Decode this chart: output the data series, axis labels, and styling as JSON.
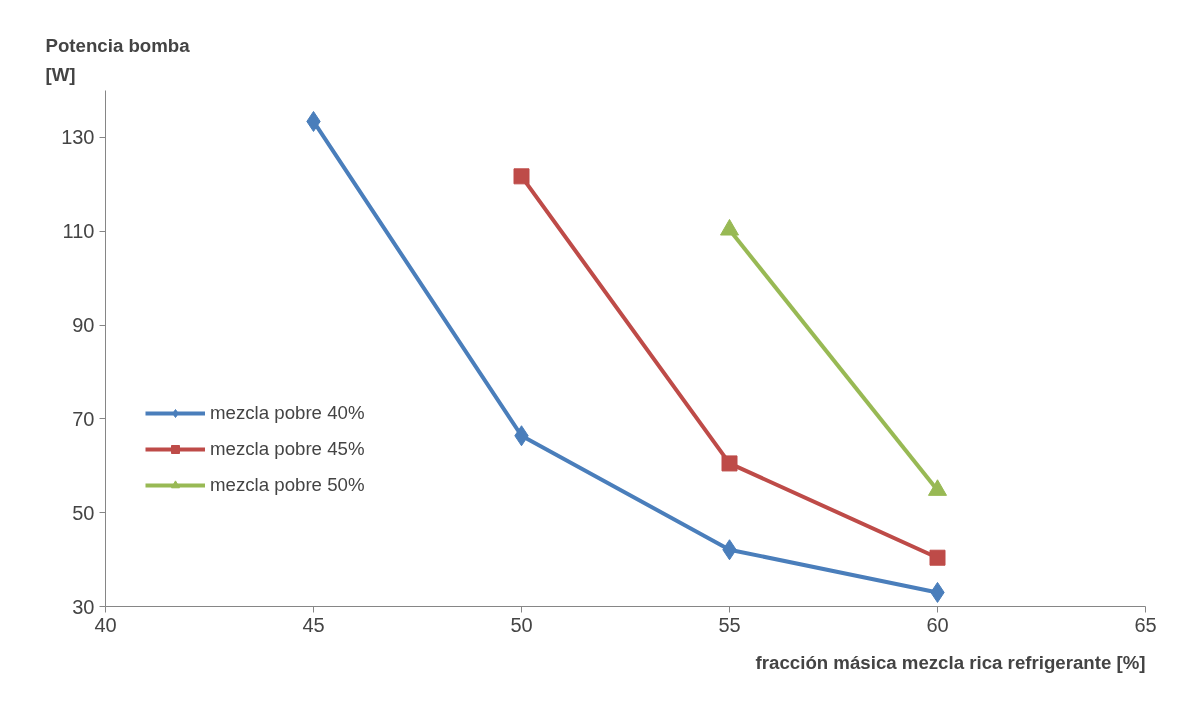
{
  "chart_data": {
    "type": "line",
    "ylabel": "Potencia bomba\n[W]",
    "xlabel": "fracción másica mezcla rica refrigerante [%]",
    "xlim": [
      40,
      65
    ],
    "xticks": [
      40,
      45,
      50,
      55,
      60,
      65
    ],
    "ylim": [
      30,
      140
    ],
    "yticks": [
      30,
      50,
      70,
      90,
      110,
      130
    ],
    "grid": false,
    "legend": "left",
    "line_style": "solid",
    "series": [
      {
        "name": "mezcla pobre 40%",
        "color": "#4a7ebb",
        "marker": "diamond",
        "x": [
          45,
          50,
          55,
          60
        ],
        "values": [
          133.4,
          66.4,
          42.1,
          33.0
        ]
      },
      {
        "name": "mezcla pobre 45%",
        "color": "#be4b48",
        "marker": "square",
        "x": [
          50,
          55,
          60
        ],
        "values": [
          121.7,
          60.5,
          40.4
        ]
      },
      {
        "name": "mezcla pobre 50%",
        "color": "#98b954",
        "marker": "triangle",
        "x": [
          55,
          60
        ],
        "values": [
          110.3,
          54.8
        ]
      }
    ]
  }
}
